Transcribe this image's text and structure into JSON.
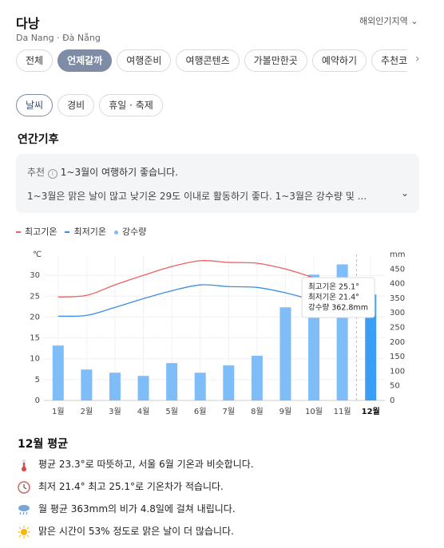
{
  "header": {
    "title": "다낭",
    "subtitle": "Da Nang · Đà Nẵng",
    "region": "해외인기지역"
  },
  "tabs": [
    "전체",
    "언제갈까",
    "여행준비",
    "여행콘텐츠",
    "가볼만한곳",
    "예약하기",
    "추천코스"
  ],
  "subtabs": [
    "날씨",
    "경비",
    "휴일 · 축제"
  ],
  "section_title": "연간기후",
  "recommend": {
    "label": "추천",
    "headline": "1~3월이 여행하기 좋습니다.",
    "detail": "1~3월은 맑은 날이 많고 낮기온 29도 이내로 활동하기 좋다. 1~3월은 강수량 및 ..."
  },
  "chart_data": {
    "type": "bar-line",
    "categories": [
      "1월",
      "2월",
      "3월",
      "4월",
      "5월",
      "6월",
      "7월",
      "8월",
      "9월",
      "10월",
      "11월",
      "12월"
    ],
    "y_unit": "℃",
    "y2_unit": "mm",
    "ylim": [
      0,
      35
    ],
    "yticks": [
      0,
      5,
      10,
      15,
      20,
      25,
      30
    ],
    "y2lim": [
      0,
      500
    ],
    "y2ticks": [
      0,
      50,
      100,
      150,
      200,
      250,
      300,
      350,
      400,
      450
    ],
    "grid": true,
    "selected": 11,
    "series": [
      {
        "name": "최고기온",
        "type": "line",
        "color": "#ef5f5f",
        "values": [
          24.8,
          25.2,
          27.7,
          30,
          32.1,
          33.5,
          33.1,
          32.9,
          31.5,
          29.4,
          27.1,
          25.1
        ]
      },
      {
        "name": "최저기온",
        "type": "line",
        "color": "#3a8ee6",
        "values": [
          20.2,
          20.4,
          22.3,
          24.4,
          26.3,
          27.7,
          27.3,
          27.1,
          25.8,
          24,
          22.1,
          21.4
        ]
      },
      {
        "name": "강수량",
        "type": "bar",
        "axis": "y2",
        "color": "#7fbdf9",
        "values": [
          188,
          106,
          95,
          84,
          128,
          95,
          120,
          153,
          319,
          431,
          466,
          362.8
        ]
      }
    ],
    "selected_color": "#3a9ef5",
    "tooltip": [
      "최고기온 25.1°",
      "최저기온 21.4°",
      "강수량 362.8mm"
    ]
  },
  "summary": {
    "title": "12월 평균",
    "items": [
      "평균 23.3°로 따뜻하고, 서울 6월 기온과 비슷합니다.",
      "최저 21.4° 최고 25.1°로 기온차가 적습니다.",
      "월 평균 363mm의 비가 4.8일에 걸쳐 내립니다.",
      "맑은 시간이 53% 정도로 맑은 날이 더 많습니다."
    ]
  }
}
